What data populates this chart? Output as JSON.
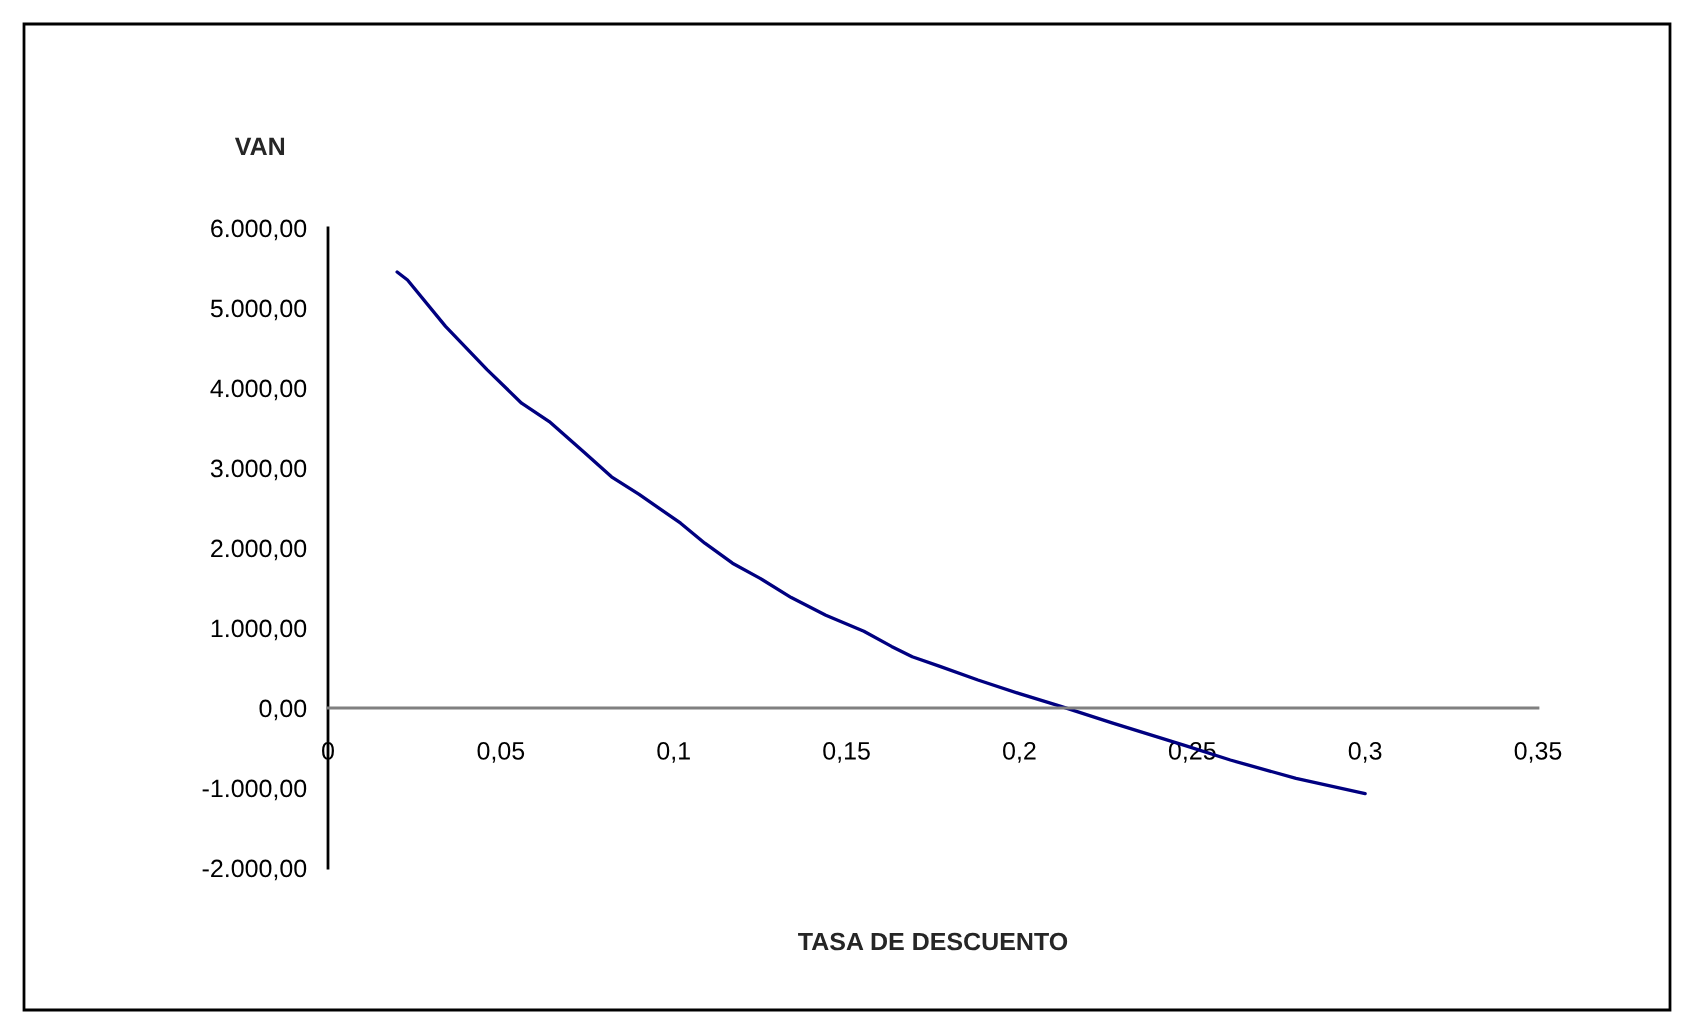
{
  "chart_data": {
    "type": "line",
    "xlabel": "TASA DE DESCUENTO",
    "ylabel": "VAN",
    "x": [
      0.02,
      0.023,
      0.034,
      0.046,
      0.056,
      0.064,
      0.074,
      0.082,
      0.09,
      0.102,
      0.109,
      0.117,
      0.125,
      0.134,
      0.144,
      0.155,
      0.163,
      0.169,
      0.177,
      0.188,
      0.2,
      0.212,
      0.227,
      0.248,
      0.261,
      0.28,
      0.3
    ],
    "series": [
      {
        "color": "#000080",
        "values": [
          5450,
          5350,
          4770,
          4230,
          3810,
          3580,
          3200,
          2890,
          2670,
          2310,
          2060,
          1810,
          1620,
          1380,
          1160,
          960,
          770,
          640,
          520,
          350,
          180,
          20,
          -190,
          -470,
          -650,
          -880,
          -1070
        ]
      }
    ],
    "xlim": [
      0,
      0.35
    ],
    "ylim": [
      -2000,
      6000
    ],
    "xticks": [
      0,
      {
        "value": 0.05,
        "label": "0,05"
      },
      {
        "value": 0.1,
        "label": "0,1"
      },
      {
        "value": 0.15,
        "label": "0,15"
      },
      {
        "value": 0.2,
        "label": "0,2"
      },
      {
        "value": 0.25,
        "label": "0,25"
      },
      {
        "value": 0.3,
        "label": "0,3"
      },
      {
        "value": 0.35,
        "label": "0,35"
      }
    ],
    "yticks": [
      {
        "value": -2000,
        "label": "-2.000,00"
      },
      {
        "value": -1000,
        "label": "-1.000,00"
      },
      {
        "value": 0,
        "label": "0,00"
      },
      {
        "value": 1000,
        "label": "1.000,00"
      },
      {
        "value": 2000,
        "label": "2.000,00"
      },
      {
        "value": 3000,
        "label": "3.000,00"
      },
      {
        "value": 4000,
        "label": "4.000,00"
      },
      {
        "value": 5000,
        "label": "5.000,00"
      },
      {
        "value": 6000,
        "label": "6.000,00"
      }
    ],
    "grid": false
  }
}
